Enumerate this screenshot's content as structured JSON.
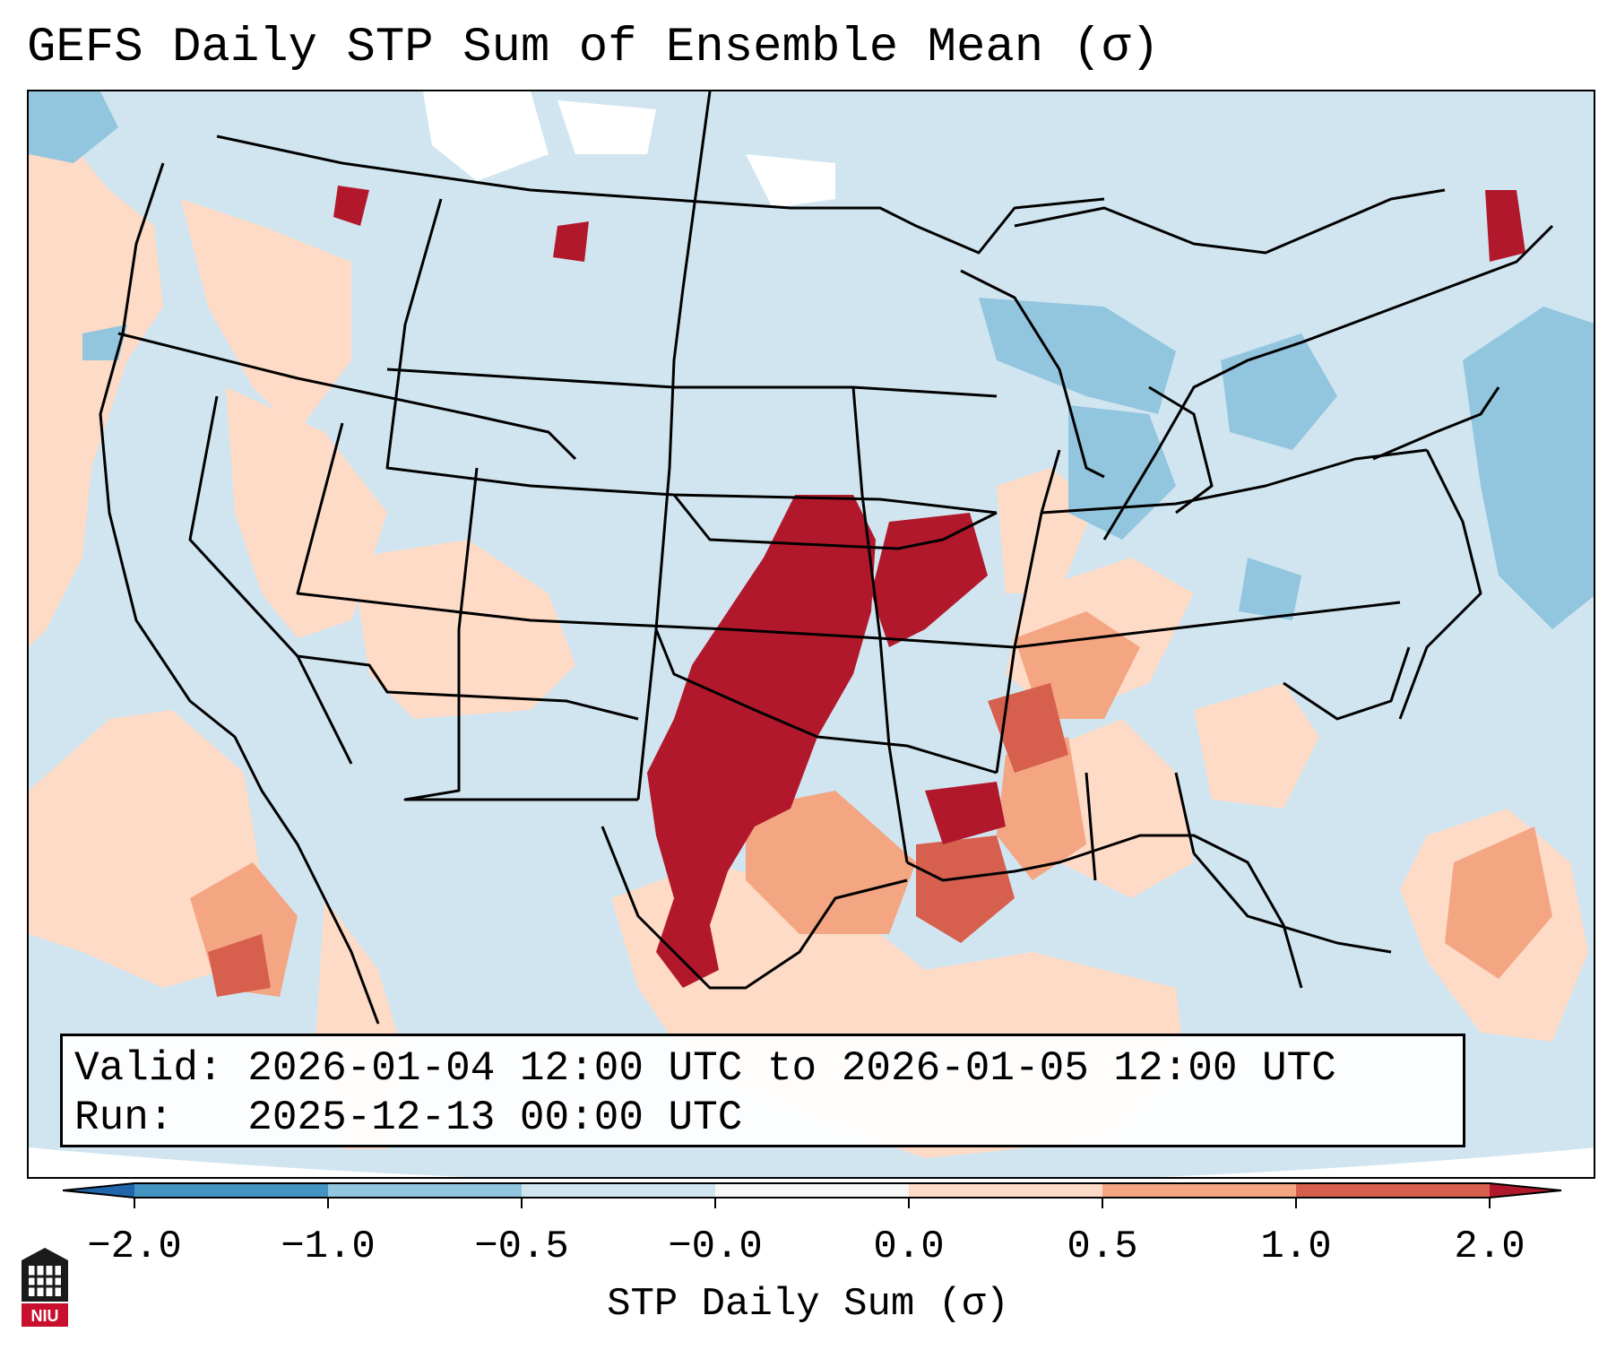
{
  "title": "GEFS Daily STP Sum of Ensemble Mean (σ)",
  "info": {
    "valid_label": "Valid:",
    "valid_value": "2026-01-04 12:00 UTC to 2026-01-05 12:00 UTC",
    "run_label": "Run:",
    "run_value": "2025-12-13 00:00 UTC"
  },
  "colorbar": {
    "label": "STP Daily Sum (σ)",
    "ticks": [
      "−2.0",
      "−1.0",
      "−0.5",
      "−0.0",
      "0.0",
      "0.5",
      "1.0",
      "2.0"
    ],
    "bins": [
      {
        "range": "< -2.0",
        "color": "#2166ac"
      },
      {
        "range": "-2.0 to -1.0",
        "color": "#4393c3"
      },
      {
        "range": "-1.0 to -0.5",
        "color": "#92c5de"
      },
      {
        "range": "-0.5 to -0.0",
        "color": "#d1e5f0"
      },
      {
        "range": "-0.0 to 0.0",
        "color": "#f7f7f7"
      },
      {
        "range": "0.0 to 0.5",
        "color": "#fddbc7"
      },
      {
        "range": "0.5 to 1.0",
        "color": "#f4a582"
      },
      {
        "range": "1.0 to 2.0",
        "color": "#d6604d"
      },
      {
        "range": "> 2.0",
        "color": "#b2182b"
      }
    ]
  },
  "logo_text": "NIU",
  "colors": {
    "strong_positive": "#b2182b",
    "moderate_positive": "#d6604d",
    "weak_positive": "#f4a582",
    "slight_positive": "#fddbc7",
    "slight_negative": "#d1e5f0",
    "weak_negative": "#92c5de",
    "brand_red": "#c8102e"
  }
}
